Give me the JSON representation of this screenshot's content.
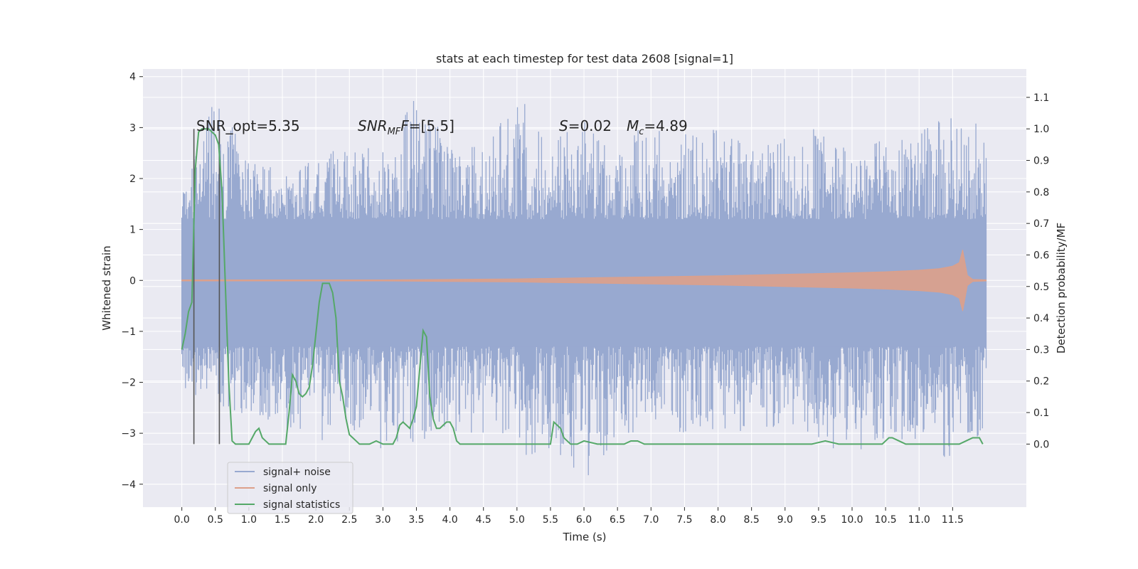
{
  "chart_data": {
    "type": "line",
    "title": "stats at each timestep for test data 2608 [signal=1]",
    "xlabel": "Time (s)",
    "ylabel_left": "Whitened strain",
    "ylabel_right": "Detection probability/MF",
    "xlim": [
      -0.58,
      12.6
    ],
    "ylim_left": [
      -4.45,
      4.15
    ],
    "ylim_right": [
      -0.2,
      1.19
    ],
    "x_ticks": [
      "0.0",
      "0.5",
      "1.0",
      "1.5",
      "2.0",
      "2.5",
      "3.0",
      "3.5",
      "4.0",
      "4.5",
      "5.0",
      "5.5",
      "6.0",
      "6.5",
      "7.0",
      "7.5",
      "8.0",
      "8.5",
      "9.0",
      "9.5",
      "10.0",
      "10.5",
      "11.0",
      "11.5"
    ],
    "y_ticks_left": [
      "4",
      "3",
      "2",
      "1",
      "0",
      "−1",
      "−2",
      "−3",
      "−4"
    ],
    "y_ticks_right": [
      "1.1",
      "1.0",
      "0.9",
      "0.8",
      "0.7",
      "0.6",
      "0.5",
      "0.4",
      "0.3",
      "0.2",
      "0.1",
      "0.0"
    ],
    "grid": true,
    "legend_position": "lower-left",
    "annotations": {
      "snr_opt": "SNR_opt=5.35",
      "snr_mf_main": "SNR",
      "snr_mf_sub": "MF",
      "snr_mf_value": "=[5.5]",
      "s_main": "S",
      "s_value": "=0.02",
      "mc_main": "M",
      "mc_sub": "c",
      "mc_value": "=4.89"
    },
    "markers_x": [
      0.18,
      0.56
    ],
    "series": [
      {
        "name": "signal+ noise",
        "color": "#98A9D0",
        "description": "whitened strain noise envelope",
        "time": [
          0,
          12
        ],
        "envelope_pos": [
          1.8,
          3.6,
          2.5,
          2.2,
          2.4,
          2.7,
          2.6,
          3.8,
          2.8,
          2.6,
          3.7,
          2.7,
          3.2,
          2.6,
          3.2,
          2.9,
          3.0,
          2.6,
          2.8,
          3.0,
          2.7,
          2.8,
          2.9,
          3.4,
          3.0
        ],
        "envelope_neg": [
          -2.1,
          -2.5,
          -2.7,
          -2.9,
          -3.3,
          -2.9,
          -3.4,
          -3.2,
          -3.0,
          -3.0,
          -3.5,
          -3.3,
          -4.1,
          -3.0,
          -3.0,
          -3.1,
          -3.0,
          -3.0,
          -2.9,
          -3.2,
          -3.5,
          -3.3,
          -3.2,
          -3.6,
          -2.9
        ]
      },
      {
        "name": "signal only",
        "color": "#DDA08A",
        "description": "chirp amplitude",
        "x": [
          0,
          1,
          2,
          3,
          4,
          5,
          6,
          7,
          8,
          9,
          10,
          10.5,
          11,
          11.3,
          11.5,
          11.6,
          11.65,
          11.72,
          11.8,
          12
        ],
        "amplitude": [
          0.01,
          0.01,
          0.01,
          0.01,
          0.02,
          0.03,
          0.05,
          0.07,
          0.09,
          0.12,
          0.15,
          0.17,
          0.2,
          0.23,
          0.28,
          0.35,
          0.6,
          0.1,
          0.02,
          0.01
        ]
      },
      {
        "name": "signal statistics",
        "color": "#55A868",
        "x": [
          0.0,
          0.05,
          0.1,
          0.15,
          0.2,
          0.25,
          0.3,
          0.35,
          0.4,
          0.45,
          0.5,
          0.55,
          0.6,
          0.65,
          0.7,
          0.75,
          0.8,
          0.9,
          1.0,
          1.05,
          1.1,
          1.15,
          1.2,
          1.25,
          1.3,
          1.4,
          1.5,
          1.55,
          1.6,
          1.65,
          1.7,
          1.75,
          1.8,
          1.85,
          1.9,
          1.95,
          2.0,
          2.05,
          2.1,
          2.15,
          2.2,
          2.25,
          2.3,
          2.35,
          2.4,
          2.45,
          2.5,
          2.55,
          2.6,
          2.65,
          2.7,
          2.8,
          2.9,
          3.0,
          3.1,
          3.15,
          3.2,
          3.25,
          3.3,
          3.35,
          3.4,
          3.45,
          3.5,
          3.55,
          3.6,
          3.65,
          3.7,
          3.75,
          3.8,
          3.85,
          3.9,
          3.95,
          4.0,
          4.05,
          4.1,
          4.15,
          4.2,
          4.25,
          4.3,
          4.5,
          5.0,
          5.45,
          5.5,
          5.55,
          5.6,
          5.65,
          5.7,
          5.75,
          5.8,
          5.9,
          6.0,
          6.2,
          6.4,
          6.6,
          6.7,
          6.75,
          6.8,
          6.9,
          7.0,
          8.0,
          8.5,
          9.0,
          9.2,
          9.4,
          9.6,
          9.8,
          10.0,
          10.2,
          10.45,
          10.5,
          10.55,
          10.6,
          10.7,
          10.8,
          11.0,
          11.3,
          11.5,
          11.6,
          11.7,
          11.8,
          11.9,
          11.95
        ],
        "values": [
          0.3,
          0.35,
          0.42,
          0.45,
          0.87,
          0.99,
          1.0,
          1.0,
          1.0,
          0.99,
          0.98,
          0.95,
          0.8,
          0.5,
          0.2,
          0.01,
          0.0,
          0.0,
          0.0,
          0.02,
          0.04,
          0.05,
          0.02,
          0.01,
          0.0,
          0.0,
          0.0,
          0.0,
          0.1,
          0.22,
          0.2,
          0.16,
          0.15,
          0.16,
          0.18,
          0.25,
          0.35,
          0.45,
          0.51,
          0.51,
          0.51,
          0.48,
          0.4,
          0.2,
          0.15,
          0.08,
          0.03,
          0.02,
          0.01,
          0.0,
          0.0,
          0.0,
          0.01,
          0.0,
          0.0,
          0.0,
          0.02,
          0.06,
          0.07,
          0.06,
          0.05,
          0.08,
          0.12,
          0.24,
          0.36,
          0.34,
          0.15,
          0.08,
          0.05,
          0.05,
          0.06,
          0.07,
          0.07,
          0.05,
          0.01,
          0.0,
          0.0,
          0.0,
          0.0,
          0.0,
          0.0,
          0.0,
          0.0,
          0.07,
          0.06,
          0.05,
          0.02,
          0.01,
          0.0,
          0.0,
          0.01,
          0.0,
          0.0,
          0.0,
          0.01,
          0.01,
          0.01,
          0.0,
          0.0,
          0.0,
          0.0,
          0.0,
          0.0,
          0.0,
          0.01,
          0.0,
          0.0,
          0.0,
          0.0,
          0.01,
          0.02,
          0.02,
          0.01,
          0.0,
          0.0,
          0.0,
          0.0,
          0.0,
          0.01,
          0.02,
          0.02,
          0.0
        ]
      }
    ]
  }
}
